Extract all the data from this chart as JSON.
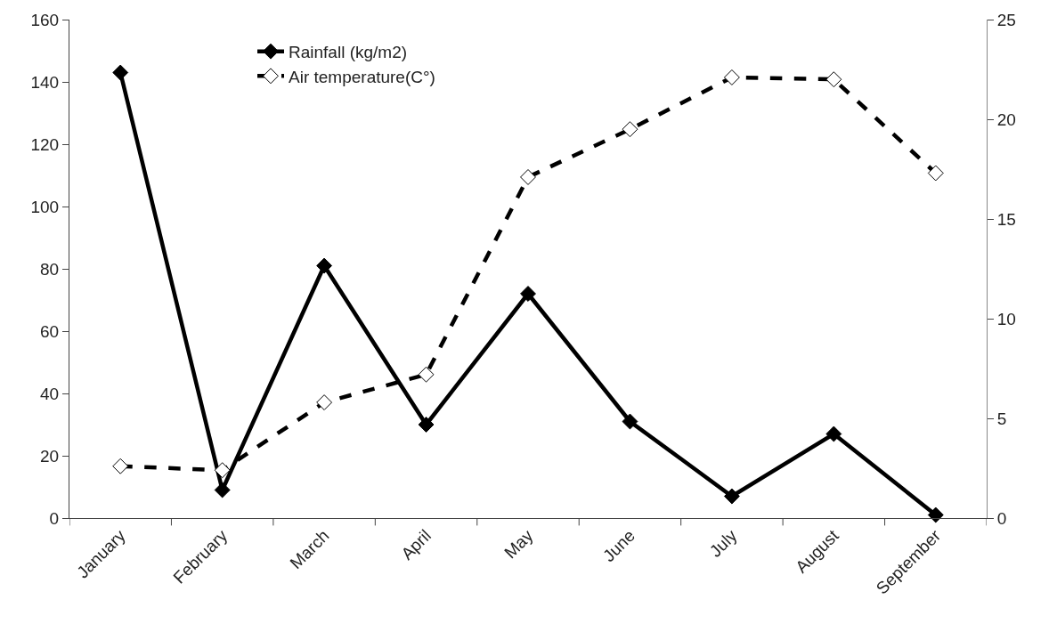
{
  "chart_data": {
    "type": "line",
    "categories": [
      "January",
      "February",
      "March",
      "April",
      "May",
      "June",
      "July",
      "August",
      "September"
    ],
    "series": [
      {
        "name": "Rainfall (kg/m2)",
        "color": "#000000",
        "marker": "diamond",
        "line_style": "solid",
        "values": [
          143,
          9,
          81,
          30,
          72,
          31,
          7,
          27,
          1
        ]
      },
      {
        "name": "Air temperature(C°)",
        "color": "#000000",
        "marker": "diamond",
        "line_style": "dashed",
        "axis": "y2",
        "values": [
          2.6,
          2.4,
          5.8,
          7.2,
          17.1,
          19.5,
          22.1,
          22.0,
          17.3
        ]
      }
    ],
    "ylim": [
      0,
      160
    ],
    "yticks": [
      0,
      20,
      40,
      60,
      80,
      100,
      120,
      140,
      160
    ],
    "y2lim": [
      0,
      25
    ],
    "y2ticks": [
      0,
      5,
      10,
      15,
      20,
      25
    ],
    "grid": false,
    "legend": "top"
  }
}
